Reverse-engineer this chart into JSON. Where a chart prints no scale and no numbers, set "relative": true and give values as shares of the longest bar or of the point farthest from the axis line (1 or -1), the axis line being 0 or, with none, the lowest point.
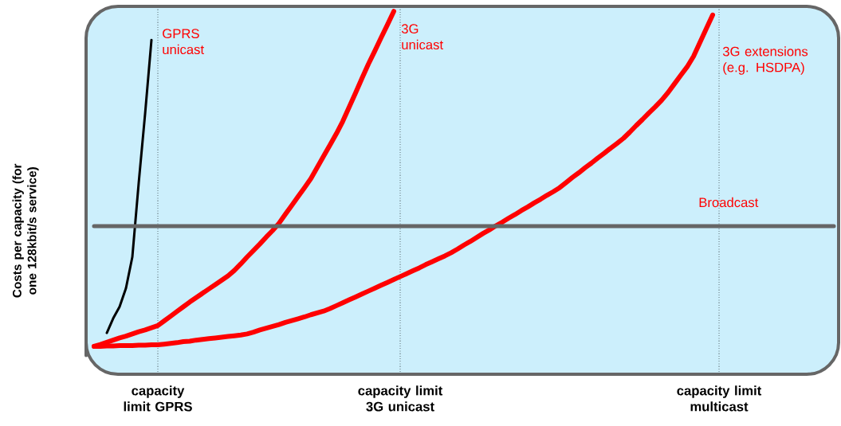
{
  "chart_data": {
    "type": "line",
    "relative": true,
    "ylabel": "Costs per capacity (for one 128kbit/s service)",
    "grid": "x",
    "categories": [
      null,
      null,
      null,
      null,
      null,
      null,
      null,
      null,
      null,
      null,
      "capacity limit GPRS",
      null,
      null,
      null,
      null,
      null,
      null,
      null,
      null,
      null,
      null,
      null,
      null,
      null,
      null,
      null,
      null,
      null,
      null,
      null,
      null,
      null,
      null,
      null,
      null,
      null,
      null,
      null,
      null,
      null,
      null,
      null,
      null,
      null,
      null,
      null,
      null,
      null,
      "capacity limit 3G unicast",
      null,
      null,
      null,
      null,
      null,
      null,
      null,
      null,
      null,
      null,
      null,
      null,
      null,
      null,
      null,
      null,
      null,
      null,
      null,
      null,
      null,
      null,
      null,
      null,
      null,
      null,
      null,
      null,
      null,
      null,
      null,
      null,
      null,
      null,
      null,
      null,
      null,
      null,
      null,
      null,
      null,
      null,
      null,
      null,
      null,
      null,
      null,
      null,
      null,
      "capacity limit multicast",
      null,
      null,
      null,
      null,
      null,
      null,
      null,
      null,
      null,
      null,
      null,
      null,
      null,
      null,
      null,
      null,
      null,
      null
    ],
    "series": [
      {
        "name": "GPRS unicast",
        "color": "#000000",
        "values": [
          null,
          null,
          0.114,
          0.154,
          0.186,
          0.237,
          0.323,
          0.527,
          0.717,
          0.921,
          null,
          null,
          null,
          null,
          null,
          null,
          null,
          null,
          null,
          null,
          null,
          null,
          null,
          null,
          null,
          null,
          null,
          null,
          null,
          null,
          null,
          null,
          null,
          null,
          null,
          null,
          null,
          null,
          null,
          null,
          null,
          null,
          null,
          null,
          null,
          null,
          null,
          null,
          null,
          null,
          null,
          null,
          null,
          null,
          null,
          null,
          null,
          null,
          null,
          null,
          null,
          null,
          null,
          null,
          null,
          null,
          null,
          null,
          null,
          null,
          null,
          null,
          null,
          null,
          null,
          null,
          null,
          null,
          null,
          null,
          null,
          null,
          null,
          null,
          null,
          null,
          null,
          null,
          null,
          null,
          null,
          null,
          null,
          null,
          null,
          null,
          null,
          null,
          null,
          null,
          null,
          null,
          null,
          null,
          null,
          null,
          null,
          null,
          null,
          null,
          null,
          null,
          null,
          null,
          null,
          null,
          null
        ]
      },
      {
        "name": "3G unicast",
        "color": "#ff0000",
        "values": [
          0.077,
          0.082,
          0.088,
          0.094,
          0.1,
          0.105,
          0.111,
          0.117,
          0.122,
          0.128,
          0.134,
          0.147,
          0.16,
          0.173,
          0.186,
          0.199,
          0.211,
          0.223,
          0.235,
          0.247,
          0.259,
          0.271,
          0.286,
          0.304,
          0.323,
          0.341,
          0.359,
          0.378,
          0.396,
          0.416,
          0.441,
          0.465,
          0.49,
          0.514,
          0.539,
          0.57,
          0.601,
          0.632,
          0.663,
          0.697,
          0.736,
          0.775,
          0.815,
          0.854,
          0.89,
          0.927,
          0.963,
          1,
          null,
          null,
          null,
          null,
          null,
          null,
          null,
          null,
          null,
          null,
          null,
          null,
          null,
          null,
          null,
          null,
          null,
          null,
          null,
          null,
          null,
          null,
          null,
          null,
          null,
          null,
          null,
          null,
          null,
          null,
          null,
          null,
          null,
          null,
          null,
          null,
          null,
          null,
          null,
          null,
          null,
          null,
          null,
          null,
          null,
          null,
          null,
          null,
          null,
          null,
          null,
          null,
          null,
          null,
          null,
          null,
          null,
          null,
          null,
          null,
          null,
          null,
          null,
          null,
          null,
          null,
          null,
          null,
          null
        ]
      },
      {
        "name": "3G extensions (e.g. HSDPA)",
        "color": "#ff0000",
        "values": [
          0.077,
          0.077,
          0.078,
          0.078,
          0.079,
          0.079,
          0.079,
          0.08,
          0.08,
          0.081,
          0.081,
          0.083,
          0.085,
          0.087,
          0.09,
          0.091,
          0.094,
          0.096,
          0.098,
          0.1,
          0.102,
          0.104,
          0.106,
          0.108,
          0.111,
          0.116,
          0.122,
          0.127,
          0.132,
          0.137,
          0.143,
          0.148,
          0.153,
          0.158,
          0.164,
          0.169,
          0.174,
          0.181,
          0.189,
          0.197,
          0.205,
          0.213,
          0.221,
          0.229,
          0.237,
          0.245,
          0.253,
          0.261,
          0.269,
          0.277,
          0.285,
          0.293,
          0.302,
          0.31,
          0.318,
          0.326,
          0.335,
          0.345,
          0.356,
          0.366,
          0.377,
          0.388,
          0.398,
          0.409,
          0.419,
          0.43,
          0.44,
          0.451,
          0.461,
          0.472,
          0.482,
          0.493,
          0.503,
          0.514,
          0.528,
          0.542,
          0.555,
          0.569,
          0.582,
          0.596,
          0.609,
          0.623,
          0.636,
          0.65,
          0.667,
          0.685,
          0.702,
          0.72,
          0.737,
          0.755,
          0.776,
          0.8,
          0.824,
          0.847,
          0.876,
          0.914,
          0.952,
          0.99,
          null,
          null,
          null,
          null,
          null,
          null,
          null,
          null,
          null,
          null,
          null,
          null,
          null,
          null,
          null,
          null,
          null,
          null,
          null
        ]
      },
      {
        "name": "Broadcast",
        "color": "#666666",
        "values": [
          0.408,
          0.408,
          0.408,
          0.408,
          0.408,
          0.408,
          0.408,
          0.408,
          0.408,
          0.408,
          0.408,
          0.408,
          0.408,
          0.408,
          0.408,
          0.408,
          0.408,
          0.408,
          0.408,
          0.408,
          0.408,
          0.408,
          0.408,
          0.408,
          0.408,
          0.408,
          0.408,
          0.408,
          0.408,
          0.408,
          0.408,
          0.408,
          0.408,
          0.408,
          0.408,
          0.408,
          0.408,
          0.408,
          0.408,
          0.408,
          0.408,
          0.408,
          0.408,
          0.408,
          0.408,
          0.408,
          0.408,
          0.408,
          0.408,
          0.408,
          0.408,
          0.408,
          0.408,
          0.408,
          0.408,
          0.408,
          0.408,
          0.408,
          0.408,
          0.408,
          0.408,
          0.408,
          0.408,
          0.408,
          0.408,
          0.408,
          0.408,
          0.408,
          0.408,
          0.408,
          0.408,
          0.408,
          0.408,
          0.408,
          0.408,
          0.408,
          0.408,
          0.408,
          0.408,
          0.408,
          0.408,
          0.408,
          0.408,
          0.408,
          0.408,
          0.408,
          0.408,
          0.408,
          0.408,
          0.408,
          0.408,
          0.408,
          0.408,
          0.408,
          0.408,
          0.408,
          0.408,
          0.408,
          0.408,
          0.408,
          0.408,
          0.408,
          0.408,
          0.408,
          0.408,
          0.408,
          0.408,
          0.408,
          0.408,
          0.408,
          0.408,
          0.408,
          0.408,
          0.408,
          0.408,
          0.408,
          0.408
        ]
      }
    ]
  }
}
